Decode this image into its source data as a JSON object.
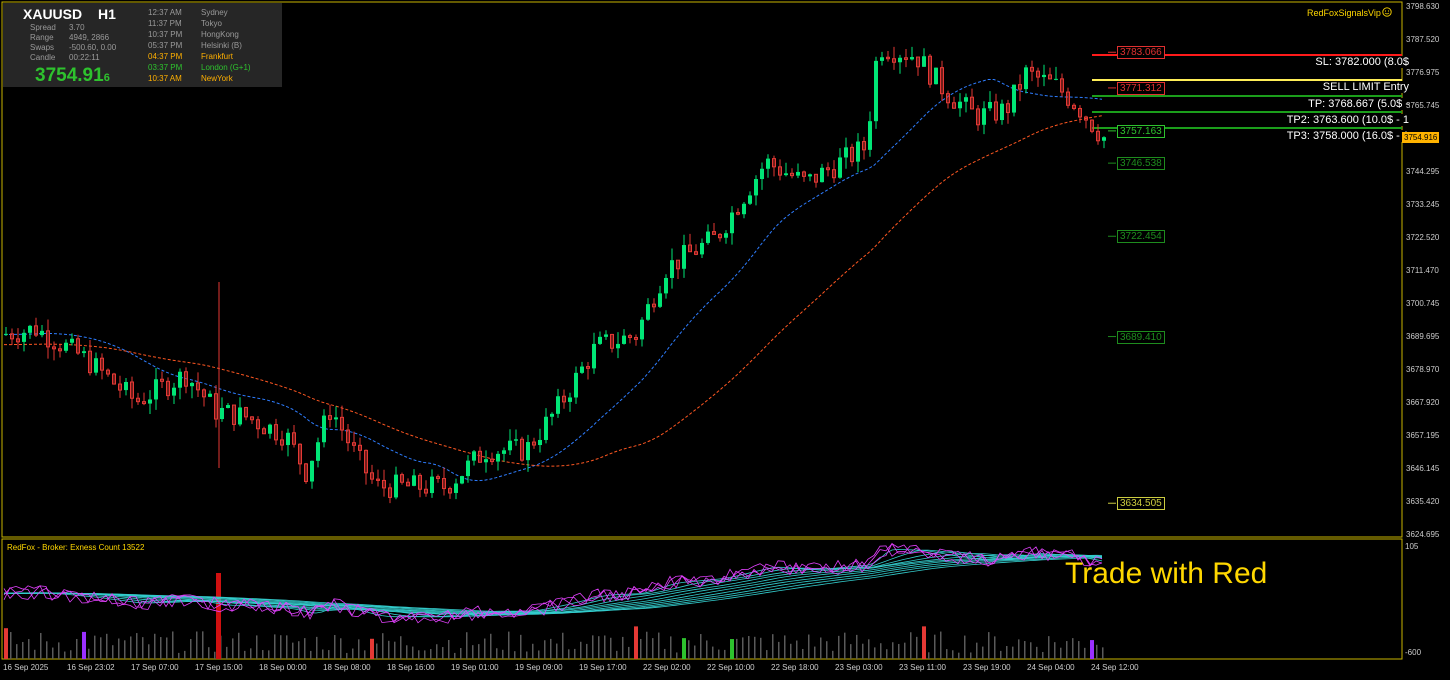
{
  "symbol": "XAUUSD",
  "timeframe": "H1",
  "info": {
    "rows": [
      {
        "label": "Spread",
        "value": "3.70"
      },
      {
        "label": "Range",
        "value": "4949, 2866"
      },
      {
        "label": "Swaps",
        "value": "-500.60, 0.00"
      },
      {
        "label": "Candle",
        "value": "00:22:11"
      }
    ],
    "price_main": "3754.91",
    "price_tail": "6"
  },
  "sessions": [
    {
      "time": "12:37 AM",
      "city": "Sydney",
      "color": "#9a9a9a"
    },
    {
      "time": "11:37 PM",
      "city": "Tokyo",
      "color": "#9a9a9a"
    },
    {
      "time": "10:37 PM",
      "city": "HongKong",
      "color": "#9a9a9a"
    },
    {
      "time": "05:37 PM",
      "city": "Helsinki  (B)",
      "color": "#9a9a9a"
    },
    {
      "time": "04:37 PM",
      "city": "Frankfurt",
      "color": "#ffb000"
    },
    {
      "time": "03:37 PM",
      "city": "London  (G+1)",
      "color": "#2ec22e"
    },
    {
      "time": "10:37 AM",
      "city": "NewYork",
      "color": "#ffb000"
    }
  ],
  "brand": "RedFoxSignalsVip",
  "brand_icon": "smiley-icon",
  "trade": {
    "sl": "SL: 3782.000 (8.0$",
    "entry": "SELL LIMIT Entry",
    "tp1": "TP: 3768.667 (5.0$ -",
    "tp2": "TP2: 3763.600 (10.0$ - 1",
    "tp3": "TP3: 3758.000 (16.0$ - 1"
  },
  "levels": [
    {
      "value": "3783.066",
      "color": "#e03030",
      "price": 3783.066
    },
    {
      "value": "3771.312",
      "color": "#e03030",
      "price": 3771.312
    },
    {
      "value": "3757.163",
      "color": "#2ec22e",
      "price": 3757.163
    },
    {
      "value": "3746.538",
      "color": "#1e8c1e",
      "price": 3746.538
    },
    {
      "value": "3722.454",
      "color": "#1e8c1e",
      "price": 3722.454
    },
    {
      "value": "3689.410",
      "color": "#1e8c1e",
      "price": 3689.41
    },
    {
      "value": "3634.505",
      "color": "#cccc40",
      "price": 3634.505
    }
  ],
  "price_axis": [
    "3798.630",
    "3787.520",
    "3776.975",
    "3765.745",
    "3754.916",
    "3744.295",
    "3733.245",
    "3722.520",
    "3711.470",
    "3700.745",
    "3689.695",
    "3678.970",
    "3667.920",
    "3657.195",
    "3646.145",
    "3635.420",
    "3624.695"
  ],
  "current_price": "3754.916",
  "time_axis": [
    "16 Sep 2025",
    "16 Sep 23:02",
    "17 Sep 07:00",
    "17 Sep 15:00",
    "18 Sep 00:00",
    "18 Sep 08:00",
    "18 Sep 16:00",
    "19 Sep 01:00",
    "19 Sep 09:00",
    "19 Sep 17:00",
    "22 Sep 02:00",
    "22 Sep 10:00",
    "22 Sep 18:00",
    "23 Sep 03:00",
    "23 Sep 11:00",
    "23 Sep 19:00",
    "24 Sep 04:00",
    "24 Sep 12:00"
  ],
  "indicator": {
    "title": "RedFox -  Broker: Exness     Count  13522",
    "top": "105",
    "bottom": "-600",
    "watermark": "Trade with Red"
  },
  "colors": {
    "bull": "#00e676",
    "bear": "#e53935",
    "ma_fast": "#2e7dff",
    "ma_slow": "#ff5722"
  }
}
